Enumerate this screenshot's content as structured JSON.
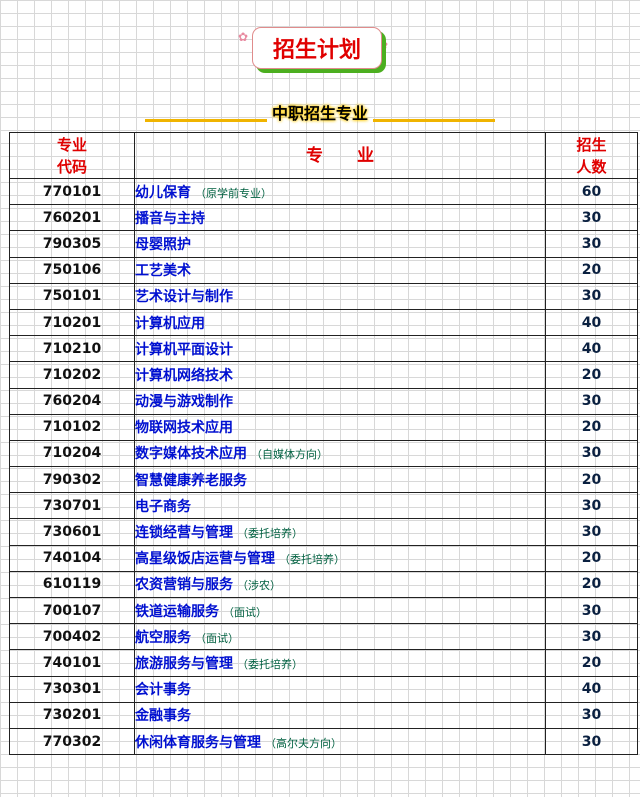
{
  "title": "招生计划",
  "subtitle": "中职招生专业",
  "headers": {
    "code": "专业代码",
    "major": "专　　业",
    "count": "招生人数"
  },
  "rows": [
    {
      "code": "770101",
      "name": "幼儿保育",
      "note": "（原学前专业）",
      "count": "60"
    },
    {
      "code": "760201",
      "name": "播音与主持",
      "note": "",
      "count": "30"
    },
    {
      "code": "790305",
      "name": "母婴照护",
      "note": "",
      "count": "30"
    },
    {
      "code": "750106",
      "name": "工艺美术",
      "note": "",
      "count": "20"
    },
    {
      "code": "750101",
      "name": "艺术设计与制作",
      "note": "",
      "count": "30"
    },
    {
      "code": "710201",
      "name": "计算机应用",
      "note": "",
      "count": "40"
    },
    {
      "code": "710210",
      "name": "计算机平面设计",
      "note": "",
      "count": "40"
    },
    {
      "code": "710202",
      "name": "计算机网络技术",
      "note": "",
      "count": "20"
    },
    {
      "code": "760204",
      "name": "动漫与游戏制作",
      "note": "",
      "count": "30"
    },
    {
      "code": "710102",
      "name": "物联网技术应用",
      "note": "",
      "count": "20"
    },
    {
      "code": "710204",
      "name": "数字媒体技术应用",
      "note": "（自媒体方向）",
      "count": "30"
    },
    {
      "code": "790302",
      "name": "智慧健康养老服务",
      "note": "",
      "count": "20"
    },
    {
      "code": "730701",
      "name": "电子商务",
      "note": "",
      "count": "30"
    },
    {
      "code": "730601",
      "name": "连锁经营与管理",
      "note": "（委托培养）",
      "count": "30"
    },
    {
      "code": "740104",
      "name": "高星级饭店运营与管理",
      "note": "（委托培养）",
      "count": "20"
    },
    {
      "code": "610119",
      "name": "农资营销与服务",
      "note": "（涉农）",
      "count": "20"
    },
    {
      "code": "700107",
      "name": "铁道运输服务",
      "note": "（面试）",
      "count": "30"
    },
    {
      "code": "700402",
      "name": "航空服务",
      "note": "（面试）",
      "count": "30"
    },
    {
      "code": "740101",
      "name": "旅游服务与管理",
      "note": "（委托培养）",
      "count": "20"
    },
    {
      "code": "730301",
      "name": "会计事务",
      "note": "",
      "count": "40"
    },
    {
      "code": "730201",
      "name": "金融事务",
      "note": "",
      "count": "30"
    },
    {
      "code": "770302",
      "name": "休闲体育服务与管理",
      "note": "（高尔夫方向）",
      "count": "30"
    }
  ]
}
